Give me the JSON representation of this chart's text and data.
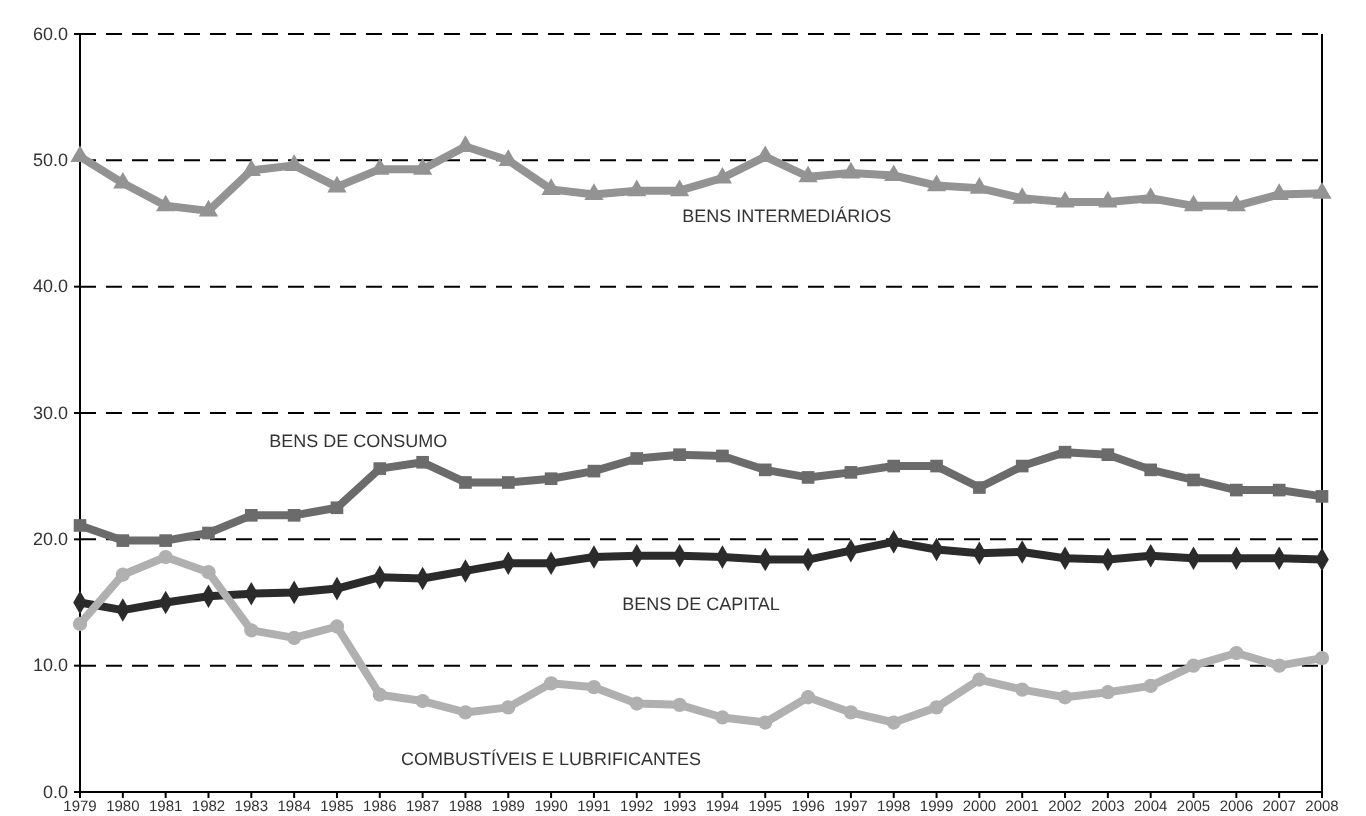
{
  "chart_data": {
    "type": "line",
    "categories": [
      "1979",
      "1980",
      "1981",
      "1982",
      "1983",
      "1984",
      "1985",
      "1986",
      "1987",
      "1988",
      "1989",
      "1990",
      "1991",
      "1992",
      "1993",
      "1994",
      "1995",
      "1996",
      "1997",
      "1998",
      "1999",
      "2000",
      "2001",
      "2002",
      "2003",
      "2004",
      "2005",
      "2006",
      "2007",
      "2008"
    ],
    "ylim": [
      0,
      60
    ],
    "yticks": [
      {
        "value": 0,
        "label": "0.0"
      },
      {
        "value": 10,
        "label": "10.0"
      },
      {
        "value": 20,
        "label": "20.0"
      },
      {
        "value": 30,
        "label": "30.0"
      },
      {
        "value": 40,
        "label": "40.0"
      },
      {
        "value": 50,
        "label": "50.0"
      },
      {
        "value": 60,
        "label": "60.0"
      }
    ],
    "grid": "y",
    "legend": false,
    "series": [
      {
        "name": "BENS INTERMEDIÁRIOS",
        "color": "#939393",
        "marker": "triangle",
        "values": [
          50.3,
          48.2,
          46.4,
          46.0,
          49.2,
          49.6,
          47.9,
          49.3,
          49.3,
          51.1,
          50.0,
          47.7,
          47.3,
          47.6,
          47.6,
          48.6,
          50.3,
          48.7,
          49.0,
          48.8,
          48.0,
          47.8,
          47.0,
          46.7,
          46.7,
          47.0,
          46.4,
          46.4,
          47.3,
          47.4
        ]
      },
      {
        "name": "BENS DE CONSUMO",
        "color": "#6b6b6b",
        "marker": "square",
        "values": [
          21.1,
          19.9,
          19.9,
          20.5,
          21.9,
          21.9,
          22.5,
          25.6,
          26.1,
          24.5,
          24.5,
          24.8,
          25.4,
          26.4,
          26.7,
          26.6,
          25.5,
          24.9,
          25.3,
          25.8,
          25.8,
          24.1,
          25.8,
          26.9,
          26.7,
          25.5,
          24.7,
          23.9,
          23.9,
          23.4
        ]
      },
      {
        "name": "BENS DE CAPITAL",
        "color": "#2b2b2b",
        "marker": "diamond",
        "values": [
          15.0,
          14.4,
          15.0,
          15.5,
          15.7,
          15.8,
          16.1,
          17.0,
          16.9,
          17.5,
          18.1,
          18.1,
          18.6,
          18.7,
          18.7,
          18.6,
          18.4,
          18.4,
          19.1,
          19.8,
          19.2,
          18.9,
          19.0,
          18.5,
          18.4,
          18.7,
          18.5,
          18.5,
          18.5,
          18.4
        ]
      },
      {
        "name": "COMBUSTÍVEIS E LUBRIFICANTES",
        "color": "#b0b0b0",
        "marker": "circle",
        "values": [
          13.3,
          17.2,
          18.6,
          17.4,
          12.8,
          12.2,
          13.1,
          7.7,
          7.2,
          6.3,
          6.7,
          8.6,
          8.3,
          7.0,
          6.9,
          5.9,
          5.5,
          7.5,
          6.3,
          5.5,
          6.7,
          8.9,
          8.1,
          7.5,
          7.9,
          8.4,
          10.0,
          11.0,
          10.0,
          10.6
        ]
      }
    ]
  }
}
